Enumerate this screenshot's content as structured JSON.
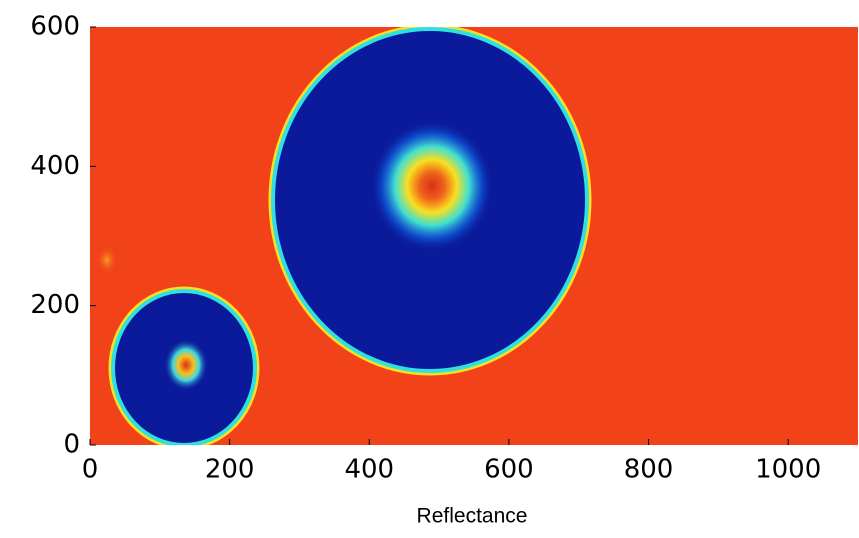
{
  "chart_data": {
    "type": "image",
    "x_label": "Reflectance",
    "xlim": [
      0,
      1100
    ],
    "xticks": [
      0,
      200,
      400,
      600,
      800,
      1000
    ],
    "ylim": [
      0,
      600
    ],
    "yticks": [
      0,
      200,
      400,
      600
    ]
  }
}
